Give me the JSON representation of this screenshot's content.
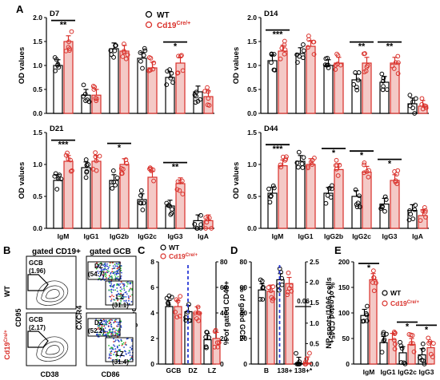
{
  "figure": {
    "panel_labels": [
      "A",
      "B",
      "C",
      "D",
      "E"
    ],
    "legend": {
      "wt": "WT",
      "cd19_base": "Cd19",
      "cd19_sup": "Cre/+"
    },
    "colors": {
      "wt": "#000000",
      "cd19": "#d9302a",
      "cd19_fill": "#f4c9c6",
      "dashed": "#2b3bd6",
      "flow_dot": "#2243c8"
    }
  },
  "chart_data": [
    {
      "id": "A-D7",
      "type": "bar",
      "title": "D7",
      "ylabel": "OD values",
      "ylim": [
        0,
        2.0
      ],
      "yticks": [
        0.0,
        0.5,
        1.0,
        1.5,
        2.0
      ],
      "categories": [
        "IgM",
        "IgG1",
        "IgG2b",
        "IgG2c",
        "IgG3",
        "IgA"
      ],
      "series": [
        {
          "name": "WT",
          "values": [
            1.0,
            0.38,
            1.35,
            1.15,
            0.75,
            0.45
          ]
        },
        {
          "name": "Cd19Cre/+",
          "values": [
            1.5,
            0.38,
            1.3,
            0.95,
            1.05,
            0.35
          ]
        }
      ],
      "significance": [
        {
          "category": "IgM",
          "label": "**"
        },
        {
          "category": "IgG3",
          "label": "*"
        }
      ],
      "show_xticklabels": false
    },
    {
      "id": "A-D14",
      "type": "bar",
      "title": "D14",
      "ylabel": "OD values",
      "ylim": [
        0,
        2.0
      ],
      "yticks": [
        0.0,
        0.5,
        1.0,
        1.5,
        2.0
      ],
      "categories": [
        "IgM",
        "IgG1",
        "IgG2b",
        "IgG2c",
        "IgG3",
        "IgA"
      ],
      "series": [
        {
          "name": "WT",
          "values": [
            1.1,
            1.25,
            1.0,
            0.7,
            0.65,
            0.2
          ]
        },
        {
          "name": "Cd19Cre/+",
          "values": [
            1.3,
            1.4,
            1.05,
            1.05,
            1.05,
            0.15
          ]
        }
      ],
      "significance": [
        {
          "category": "IgM",
          "label": "***"
        },
        {
          "category": "IgG2c",
          "label": "**"
        },
        {
          "category": "IgG3",
          "label": "**"
        }
      ],
      "show_xticklabels": false
    },
    {
      "id": "A-D21",
      "type": "bar",
      "title": "D21",
      "ylabel": "OD values",
      "ylim": [
        0,
        1.5
      ],
      "yticks": [
        0.0,
        0.5,
        1.0,
        1.5
      ],
      "categories": [
        "IgM",
        "IgG1",
        "IgG2b",
        "IgG2c",
        "IgG3",
        "IgA"
      ],
      "series": [
        {
          "name": "WT",
          "values": [
            0.75,
            0.95,
            0.75,
            0.45,
            0.35,
            0.12
          ]
        },
        {
          "name": "Cd19Cre/+",
          "values": [
            1.05,
            1.05,
            1.0,
            0.8,
            0.7,
            0.12
          ]
        }
      ],
      "significance": [
        {
          "category": "IgM",
          "label": "***"
        },
        {
          "category": "IgG2b",
          "label": "*"
        },
        {
          "category": "IgG3",
          "label": "**"
        }
      ],
      "show_xticklabels": true
    },
    {
      "id": "A-D44",
      "type": "bar",
      "title": "D44",
      "ylabel": "OD values",
      "ylim": [
        0,
        1.5
      ],
      "yticks": [
        0.0,
        0.5,
        1.0,
        1.5
      ],
      "categories": [
        "IgM",
        "IgG1",
        "IgG2b",
        "IgG2c",
        "IgG3",
        "IgA"
      ],
      "series": [
        {
          "name": "WT",
          "values": [
            0.55,
            1.05,
            0.55,
            0.5,
            0.38,
            0.28
          ]
        },
        {
          "name": "Cd19Cre/+",
          "values": [
            0.98,
            1.0,
            0.92,
            0.88,
            0.75,
            0.2
          ]
        }
      ],
      "significance": [
        {
          "category": "IgM",
          "label": "***"
        },
        {
          "category": "IgG2b",
          "label": "*"
        },
        {
          "category": "IgG2c",
          "label": "*"
        },
        {
          "category": "IgG3",
          "label": "*"
        }
      ],
      "show_xticklabels": true
    },
    {
      "id": "C",
      "type": "bar",
      "ylabel": "% of gated B cells",
      "ylim": [
        0,
        8
      ],
      "yticks": [
        0,
        2,
        4,
        6,
        8
      ],
      "ylabel_right": "% of gated GCB",
      "ylim_right": [
        0,
        80
      ],
      "yticks_right": [
        0,
        20,
        40,
        60,
        80
      ],
      "categories": [
        "GCB",
        "DZ",
        "LZ"
      ],
      "series": [
        {
          "name": "WT",
          "values": [
            4.5,
            4.1,
            1.9
          ]
        },
        {
          "name": "Cd19Cre/+",
          "values": [
            4.5,
            4.0,
            2.0
          ]
        }
      ]
    },
    {
      "id": "D",
      "type": "bar",
      "ylabel": "% of gated CD45+",
      "ylim": [
        0,
        80
      ],
      "yticks": [
        0,
        20,
        40,
        60,
        80
      ],
      "ylabel_right": "% of gated CD45+",
      "yticks_right": [
        0.0,
        0.5,
        1.0,
        1.5,
        2.0,
        2.5
      ],
      "categories": [
        "B",
        "138+",
        "138+*"
      ],
      "series": [
        {
          "name": "WT",
          "values": [
            58,
            66,
            0.5
          ]
        },
        {
          "name": "Cd19Cre/+",
          "values": [
            57,
            63,
            0.8
          ]
        }
      ],
      "annotation": "0.06"
    },
    {
      "id": "E",
      "type": "bar",
      "ylabel": "NP-spots/10^6 cells",
      "ylim": [
        0,
        200
      ],
      "yticks": [
        0,
        50,
        100,
        150,
        200
      ],
      "categories": [
        "IgM",
        "IgG1",
        "IgG2c",
        "IgG3"
      ],
      "series": [
        {
          "name": "WT",
          "values": [
            95,
            42,
            22,
            18
          ]
        },
        {
          "name": "Cd19Cre/+",
          "values": [
            165,
            48,
            38,
            32
          ]
        }
      ],
      "significance": [
        {
          "category": "IgM",
          "label": "*"
        },
        {
          "category": "IgG2c",
          "label": "*"
        },
        {
          "category": "IgG3",
          "label": "*"
        }
      ]
    }
  ],
  "flow": {
    "col_titles": [
      "gated CD19+",
      "gated GCB"
    ],
    "row_labels": [
      "WT",
      "Cd19"
    ],
    "row_sup": "Cre/+",
    "x_axes": [
      "CD38",
      "CD86"
    ],
    "y_axes": [
      "CD95",
      "CXCR4"
    ],
    "gates": {
      "wt_gcb_name": "GCB",
      "wt_gcb_value": "(1.96)",
      "mut_gcb_name": "GCB",
      "mut_gcb_value": "(2.17)",
      "wt_dz_name": "DZ",
      "wt_dz_value": "(54.7)",
      "wt_lz_name": "LZ",
      "wt_lz_value": "(31.1)",
      "mut_dz_name": "DZ",
      "mut_dz_value": "(52.2)",
      "mut_lz_name": "LZ",
      "mut_lz_value": "(31.4)"
    }
  }
}
